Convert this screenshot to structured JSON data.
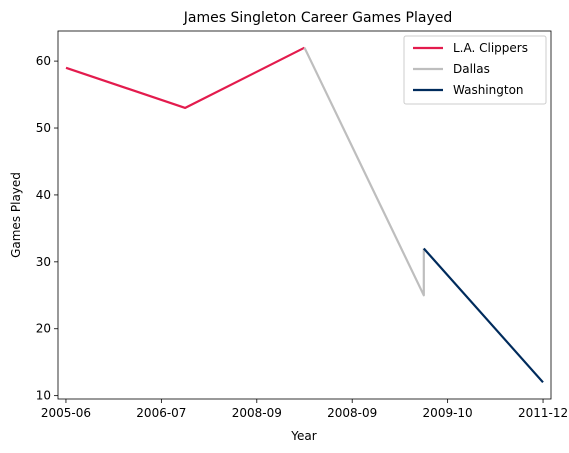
{
  "chart_data": {
    "type": "line",
    "title": "James Singleton  Career Games Played",
    "xlabel": "Year",
    "ylabel": "Games Played",
    "x_ticks": [
      "2005-06",
      "2006-07",
      "2008-09",
      "2008-09",
      "2009-10",
      "2011-12"
    ],
    "y_ticks": [
      10,
      20,
      30,
      40,
      50,
      60
    ],
    "xlim": [
      -0.1,
      6.1
    ],
    "ylim": [
      9.5,
      64.5
    ],
    "legend_position": "top-right",
    "grid": false,
    "series": [
      {
        "name": "L.A. Clippers",
        "color": "#e31b4d",
        "x": [
          0,
          1.5,
          3
        ],
        "y": [
          59,
          53,
          62
        ]
      },
      {
        "name": "Dallas",
        "color": "#bebebe",
        "x": [
          3,
          4.5,
          4.5
        ],
        "y": [
          62,
          25,
          32
        ]
      },
      {
        "name": "Washington",
        "color": "#002b5c",
        "x": [
          4.5,
          6
        ],
        "y": [
          32,
          12
        ]
      }
    ]
  }
}
